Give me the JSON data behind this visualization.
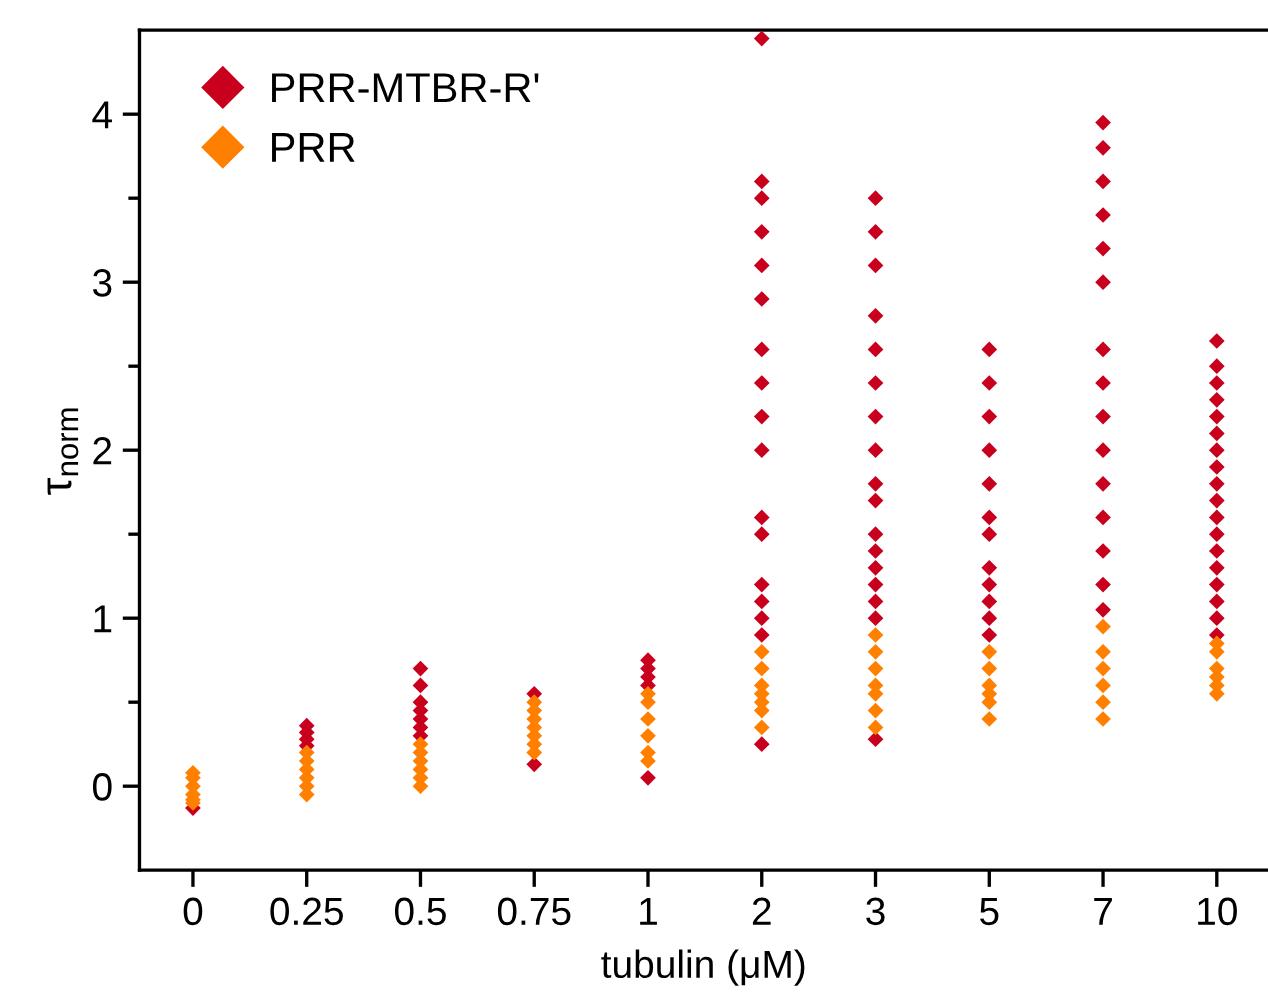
{
  "chart_data": {
    "type": "scatter",
    "xlabel": "tubulin (μM)",
    "ylabel": "τ$_{norm}$",
    "categories": [
      "0",
      "0.25",
      "0.5",
      "0.75",
      "1",
      "2",
      "3",
      "5",
      "7",
      "10"
    ],
    "ylim": [
      -0.5,
      4.5
    ],
    "yticks": [
      0,
      {
        "value": 0.5,
        "label": null
      },
      1,
      {
        "value": 1.5,
        "label": null
      },
      2,
      {
        "value": 2.5,
        "label": null
      },
      3,
      {
        "value": 3.5,
        "label": null
      },
      4
    ],
    "marker": "diamond",
    "legend": "top left",
    "grid": false,
    "series": [
      {
        "name": "PRR-MTBR-R'",
        "color": "#c8001e",
        "x": [
          "0",
          "0.25",
          "0.25",
          "0.25",
          "0.25",
          "0.5",
          "0.5",
          "0.5",
          "0.5",
          "0.5",
          "0.5",
          "0.5",
          "0.75",
          "0.75",
          "1",
          "1",
          "1",
          "1",
          "1",
          "2",
          "2",
          "2",
          "2",
          "2",
          "2",
          "2",
          "2",
          "2",
          "2",
          "2",
          "2",
          "2",
          "2",
          "2",
          "2",
          "2",
          "3",
          "3",
          "3",
          "3",
          "3",
          "3",
          "3",
          "3",
          "3",
          "3",
          "3",
          "3",
          "3",
          "3",
          "3",
          "3",
          "3",
          "5",
          "5",
          "5",
          "5",
          "5",
          "5",
          "5",
          "5",
          "5",
          "5",
          "5",
          "5",
          "7",
          "7",
          "7",
          "7",
          "7",
          "7",
          "7",
          "7",
          "7",
          "7",
          "7",
          "7",
          "7",
          "7",
          "7",
          "10",
          "10",
          "10",
          "10",
          "10",
          "10",
          "10",
          "10",
          "10",
          "10",
          "10",
          "10",
          "10",
          "10",
          "10",
          "10",
          "10",
          "10"
        ],
        "values": [
          -0.13,
          0.24,
          0.28,
          0.32,
          0.36,
          0.3,
          0.35,
          0.4,
          0.45,
          0.5,
          0.6,
          0.7,
          0.13,
          0.55,
          0.05,
          0.6,
          0.65,
          0.7,
          0.75,
          4.45,
          3.6,
          3.5,
          3.3,
          3.1,
          2.9,
          2.6,
          2.4,
          2.2,
          2.0,
          1.6,
          1.5,
          1.2,
          1.1,
          1.0,
          0.9,
          0.25,
          3.5,
          3.3,
          3.1,
          2.8,
          2.6,
          2.4,
          2.2,
          2.0,
          1.8,
          1.7,
          1.5,
          1.4,
          1.3,
          1.2,
          1.1,
          1.0,
          0.28,
          2.6,
          2.4,
          2.2,
          2.0,
          1.8,
          1.6,
          1.5,
          1.3,
          1.2,
          1.1,
          1.0,
          0.9,
          3.95,
          3.8,
          3.6,
          3.4,
          3.2,
          3.0,
          2.6,
          2.4,
          2.2,
          2.0,
          1.8,
          1.6,
          1.4,
          1.2,
          1.05,
          2.65,
          2.5,
          2.4,
          2.3,
          2.2,
          2.1,
          2.0,
          1.9,
          1.8,
          1.7,
          1.6,
          1.5,
          1.4,
          1.3,
          1.2,
          1.1,
          1.0,
          0.9
        ]
      },
      {
        "name": "PRR",
        "color": "#ff8000",
        "x": [
          "0",
          "0",
          "0",
          "0",
          "0",
          "0",
          "0.25",
          "0.25",
          "0.25",
          "0.25",
          "0.25",
          "0.25",
          "0.5",
          "0.5",
          "0.5",
          "0.5",
          "0.5",
          "0.5",
          "0.75",
          "0.75",
          "0.75",
          "0.75",
          "0.75",
          "0.75",
          "0.75",
          "1",
          "1",
          "1",
          "1",
          "1",
          "1",
          "2",
          "2",
          "2",
          "2",
          "2",
          "2",
          "2",
          "3",
          "3",
          "3",
          "3",
          "3",
          "3",
          "3",
          "5",
          "5",
          "5",
          "5",
          "5",
          "5",
          "7",
          "7",
          "7",
          "7",
          "7",
          "7",
          "10",
          "10",
          "10",
          "10",
          "10",
          "10"
        ],
        "values": [
          -0.1,
          -0.05,
          0,
          0.05,
          0.08,
          -0.08,
          -0.05,
          0,
          0.05,
          0.1,
          0.15,
          0.2,
          0,
          0.05,
          0.1,
          0.15,
          0.2,
          0.25,
          0.2,
          0.25,
          0.3,
          0.35,
          0.4,
          0.45,
          0.5,
          0.15,
          0.2,
          0.3,
          0.4,
          0.5,
          0.55,
          0.35,
          0.45,
          0.5,
          0.55,
          0.6,
          0.7,
          0.8,
          0.35,
          0.45,
          0.55,
          0.6,
          0.7,
          0.8,
          0.9,
          0.4,
          0.5,
          0.55,
          0.6,
          0.7,
          0.8,
          0.4,
          0.5,
          0.6,
          0.7,
          0.8,
          0.95,
          0.55,
          0.6,
          0.65,
          0.7,
          0.8,
          0.85
        ]
      }
    ]
  }
}
